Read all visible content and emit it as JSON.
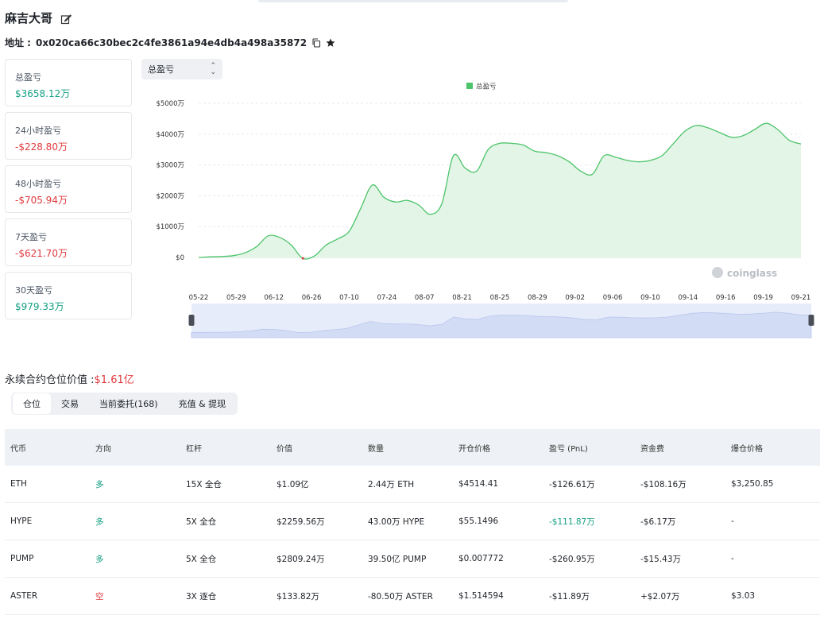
{
  "header": {
    "title": "麻吉大哥",
    "address_label": "地址 : ",
    "address": "0x020ca66c30bec2c4fe3861a94e4db4a498a35872"
  },
  "stats": [
    {
      "label": "总盈亏",
      "value": "$3658.12万",
      "tone": "pos"
    },
    {
      "label": "24小时盈亏",
      "value": "-$228.80万",
      "tone": "neg"
    },
    {
      "label": "48小时盈亏",
      "value": "-$705.94万",
      "tone": "neg"
    },
    {
      "label": "7天盈亏",
      "value": "-$621.70万",
      "tone": "neg"
    },
    {
      "label": "30天盈亏",
      "value": "$979.33万",
      "tone": "pos"
    }
  ],
  "selector": {
    "value": "总盈亏"
  },
  "chart_data": {
    "type": "area",
    "legend": [
      "总盈亏"
    ],
    "legend_position": "top-center",
    "watermark": "coinglass",
    "y_ticks": [
      "$5000万",
      "$4000万",
      "$3000万",
      "$2000万",
      "$1000万",
      "$0"
    ],
    "ylim": [
      0,
      5000
    ],
    "x_ticks": [
      "05-22",
      "05-29",
      "06-12",
      "06-26",
      "07-10",
      "07-24",
      "08-07",
      "08-21",
      "08-25",
      "08-29",
      "09-02",
      "09-06",
      "09-10",
      "09-14",
      "09-16",
      "09-19",
      "09-21"
    ],
    "series": [
      {
        "name": "总盈亏",
        "color": "#4cc46a",
        "fill": "#e3f5e7",
        "values": [
          0,
          20,
          30,
          60,
          150,
          350,
          700,
          650,
          400,
          -30,
          50,
          400,
          600,
          850,
          1600,
          2350,
          1950,
          1800,
          1850,
          1700,
          1400,
          1750,
          3300,
          2900,
          2800,
          3500,
          3700,
          3700,
          3650,
          3450,
          3400,
          3300,
          3100,
          2800,
          2700,
          3300,
          3250,
          3150,
          3100,
          3150,
          3300,
          3700,
          4100,
          4280,
          4200,
          4050,
          3900,
          3950,
          4150,
          4350,
          4150,
          3800,
          3680
        ]
      }
    ]
  },
  "positions": {
    "title": "永续合约仓位价值 :",
    "title_value": "$1.61亿",
    "tabs": [
      "仓位",
      "交易",
      "当前委托(168)",
      "充值 & 提现"
    ],
    "columns": [
      "代币",
      "方向",
      "杠杆",
      "价值",
      "数量",
      "开仓价格",
      "盈亏 (PnL)",
      "资金费",
      "爆仓价格"
    ],
    "rows": [
      {
        "token": "ETH",
        "dir": "多",
        "dir_tone": "long",
        "lev": "15X 全仓",
        "value": "$1.09亿",
        "value_tone": "",
        "qty": "2.44万 ETH",
        "entry": "$4514.41",
        "pnl": "-$126.61万",
        "pnl_tone": "",
        "fund": "-$108.16万",
        "fund_tone": "neg",
        "liq": "$3,250.85"
      },
      {
        "token": "HYPE",
        "dir": "多",
        "dir_tone": "long",
        "lev": "5X 全仓",
        "value": "$2259.56万",
        "value_tone": "neg",
        "qty": "43.00万 HYPE",
        "entry": "$55.1496",
        "pnl": "-$111.87万",
        "pnl_tone": "pos",
        "fund": "-$6.17万",
        "fund_tone": "neg",
        "liq": "-"
      },
      {
        "token": "PUMP",
        "dir": "多",
        "dir_tone": "long",
        "lev": "5X 全仓",
        "value": "$2809.24万",
        "value_tone": "",
        "qty": "39.50亿 PUMP",
        "entry": "$0.007772",
        "pnl": "-$260.95万",
        "pnl_tone": "",
        "fund": "-$15.43万",
        "fund_tone": "neg",
        "liq": "-"
      },
      {
        "token": "ASTER",
        "dir": "空",
        "dir_tone": "short",
        "lev": "3X 逐仓",
        "value": "$133.82万",
        "value_tone": "neg",
        "qty": "-80.50万 ASTER",
        "entry": "$1.514594",
        "pnl": "-$11.89万",
        "pnl_tone": "neg",
        "fund": "+$2.07万",
        "fund_tone": "pos",
        "liq": "$3.03"
      }
    ]
  }
}
